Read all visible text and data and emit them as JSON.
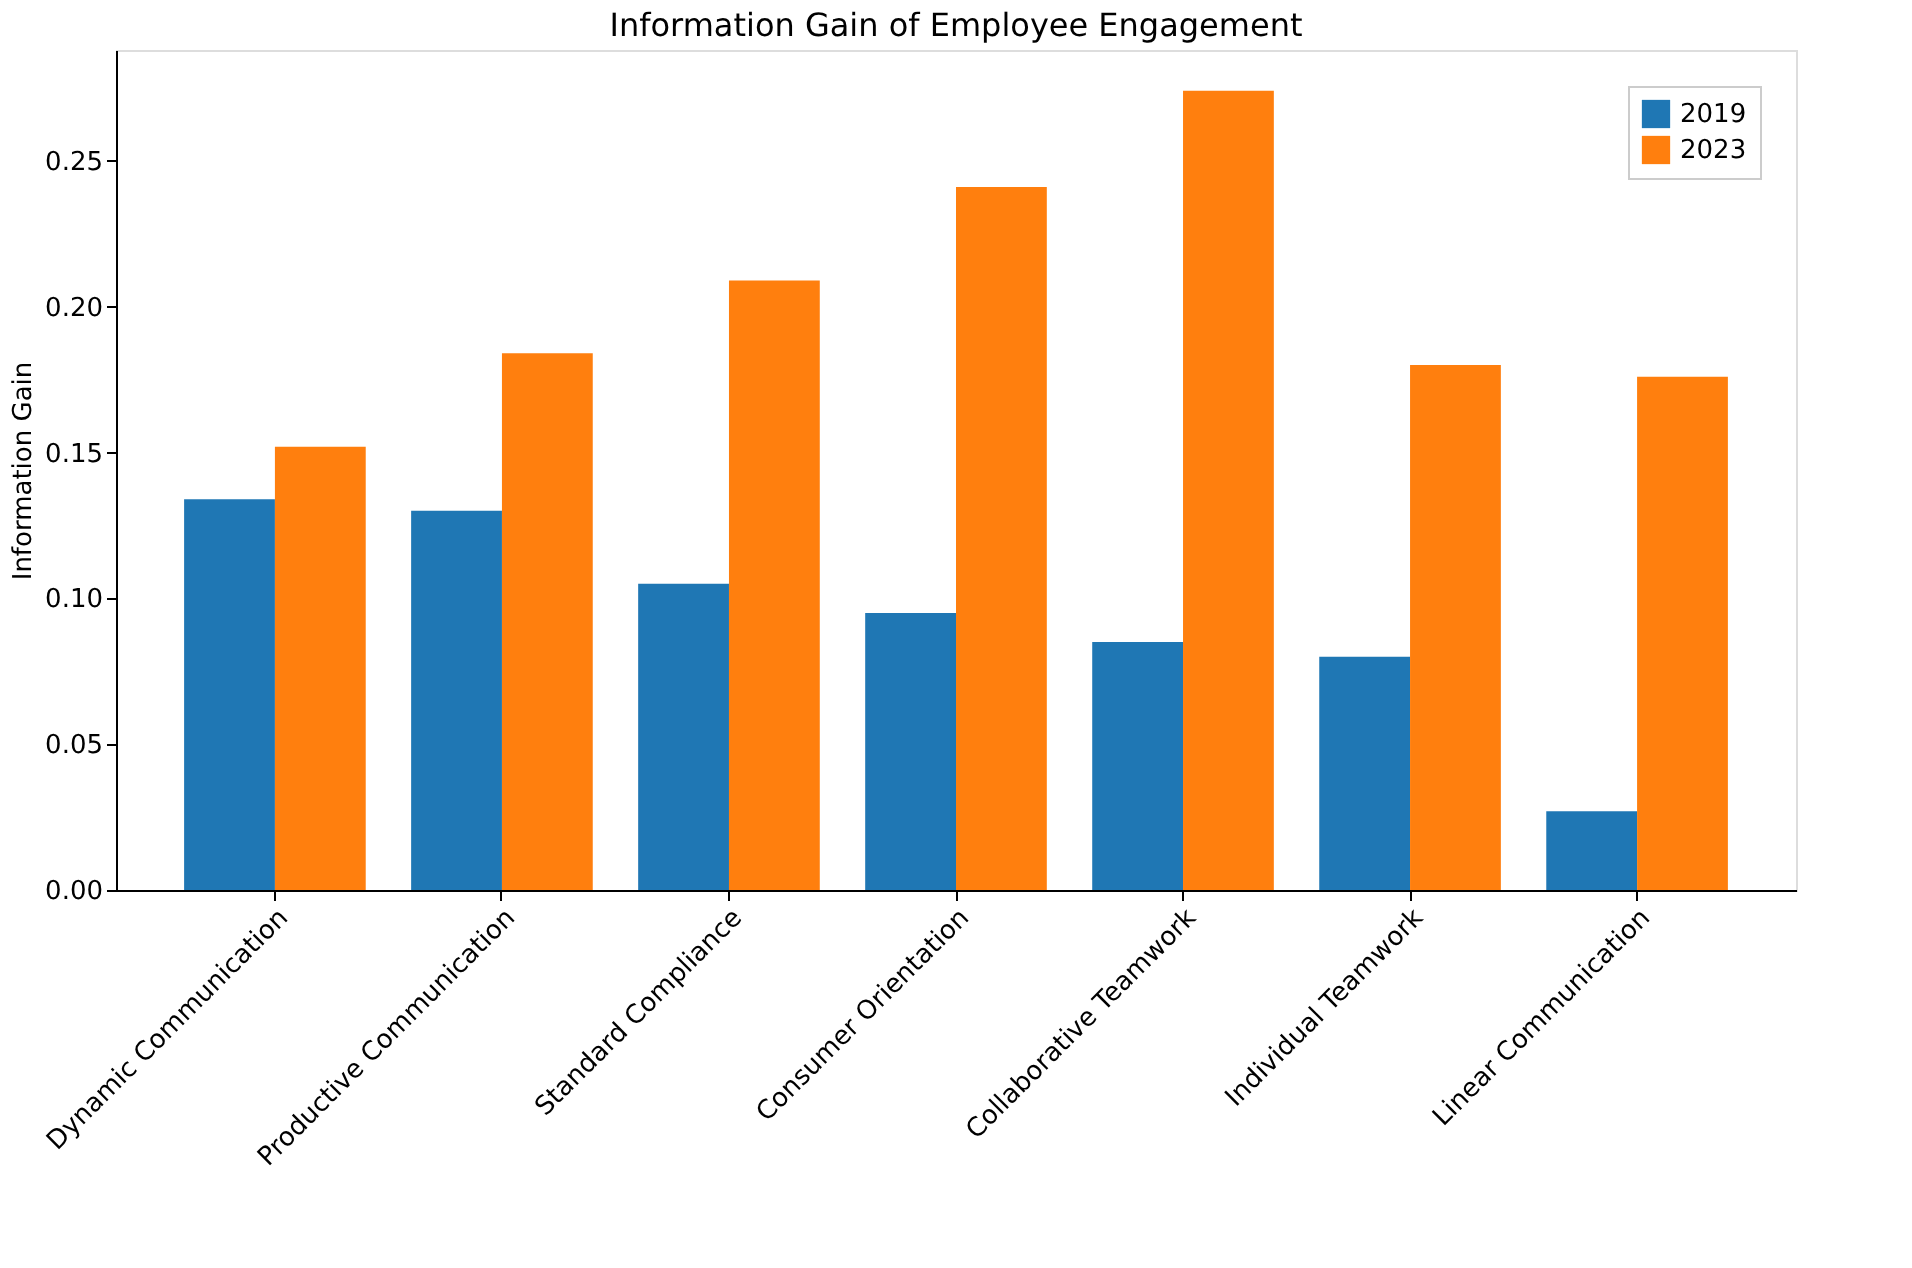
{
  "chart_data": {
    "type": "bar",
    "title": "Information Gain of Employee Engagement",
    "ylabel": "Information Gain",
    "categories": [
      "Dynamic Communication",
      "Productive Communication",
      "Standard Compliance",
      "Consumer Orientation",
      "Collaborative Teamwork",
      "Individual Teamwork",
      "Linear Communication"
    ],
    "series": [
      {
        "name": "2019",
        "color": "#1f77b4",
        "values": [
          0.134,
          0.13,
          0.105,
          0.095,
          0.085,
          0.08,
          0.027
        ]
      },
      {
        "name": "2023",
        "color": "#ff7f0e",
        "values": [
          0.152,
          0.184,
          0.209,
          0.241,
          0.274,
          0.18,
          0.176
        ]
      }
    ],
    "ylim": [
      0,
      0.288
    ],
    "yticks": [
      {
        "value": 0,
        "label": "0.00"
      },
      {
        "value": 0.05,
        "label": "0.05"
      },
      {
        "value": 0.1,
        "label": "0.10"
      },
      {
        "value": 0.15,
        "label": "0.15"
      },
      {
        "value": 0.2,
        "label": "0.20"
      },
      {
        "value": 0.25,
        "label": "0.25"
      }
    ],
    "grid": false,
    "legend": "top right"
  }
}
